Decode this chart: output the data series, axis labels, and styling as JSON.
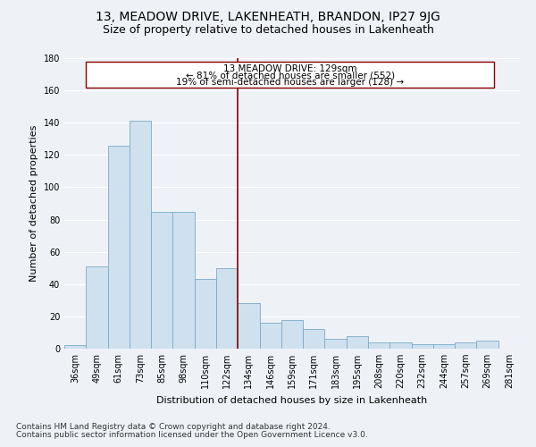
{
  "title": "13, MEADOW DRIVE, LAKENHEATH, BRANDON, IP27 9JG",
  "subtitle": "Size of property relative to detached houses in Lakenheath",
  "xlabel": "Distribution of detached houses by size in Lakenheath",
  "ylabel": "Number of detached properties",
  "categories": [
    "36sqm",
    "49sqm",
    "61sqm",
    "73sqm",
    "85sqm",
    "98sqm",
    "110sqm",
    "122sqm",
    "134sqm",
    "146sqm",
    "159sqm",
    "171sqm",
    "183sqm",
    "195sqm",
    "208sqm",
    "220sqm",
    "232sqm",
    "244sqm",
    "257sqm",
    "269sqm",
    "281sqm"
  ],
  "values": [
    2,
    51,
    126,
    141,
    85,
    85,
    43,
    50,
    28,
    16,
    18,
    12,
    6,
    8,
    4,
    4,
    3,
    3,
    4,
    5,
    0
  ],
  "bar_color": "#cfe0ef",
  "bar_edge_color": "#7aaac8",
  "annotation_text_line1": "13 MEADOW DRIVE: 129sqm",
  "annotation_text_line2": "← 81% of detached houses are smaller (552)",
  "annotation_text_line3": "19% of semi-detached houses are larger (128) →",
  "annotation_box_color": "#ffffff",
  "annotation_box_edge": "#8b0000",
  "vertical_line_color": "#8b0000",
  "ylim": [
    0,
    180
  ],
  "yticks": [
    0,
    20,
    40,
    60,
    80,
    100,
    120,
    140,
    160,
    180
  ],
  "background_color": "#eef2f7",
  "grid_color": "#ffffff",
  "footer1": "Contains HM Land Registry data © Crown copyright and database right 2024.",
  "footer2": "Contains public sector information licensed under the Open Government Licence v3.0.",
  "title_fontsize": 10,
  "subtitle_fontsize": 9,
  "axis_label_fontsize": 8,
  "tick_fontsize": 7,
  "footer_fontsize": 6.5,
  "annotation_fontsize": 7.5
}
